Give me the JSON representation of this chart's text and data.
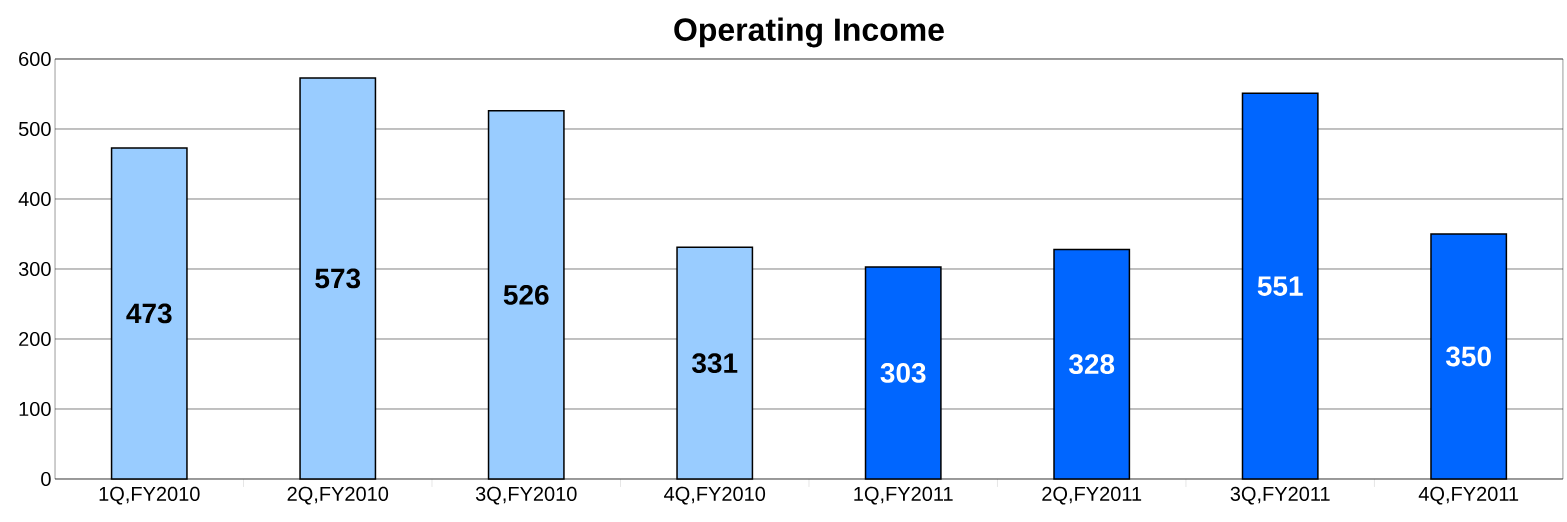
{
  "chart_data": {
    "type": "bar",
    "title": "Operating Income",
    "categories": [
      "1Q,FY2010",
      "2Q,FY2010",
      "3Q,FY2010",
      "4Q,FY2010",
      "1Q,FY2011",
      "2Q,FY2011",
      "3Q,FY2011",
      "4Q,FY2011"
    ],
    "values": [
      473,
      573,
      526,
      331,
      303,
      328,
      551,
      350
    ],
    "colors": [
      "#99ccff",
      "#99ccff",
      "#99ccff",
      "#99ccff",
      "#0066ff",
      "#0066ff",
      "#0066ff",
      "#0066ff"
    ],
    "ylim": [
      0,
      600
    ],
    "yticks": [
      0,
      100,
      200,
      300,
      400,
      500,
      600
    ],
    "grid": "y",
    "data_labels": true
  }
}
